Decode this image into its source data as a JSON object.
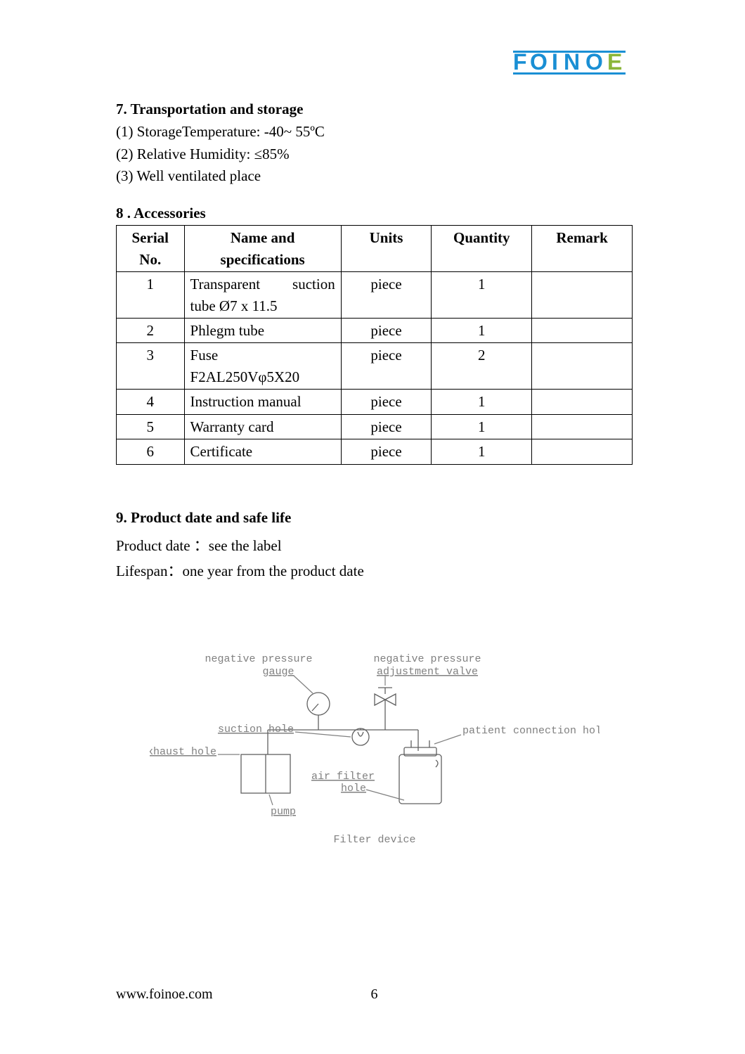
{
  "logo": {
    "text": "FOINOE",
    "color_primary": "#1a8fd4",
    "color_secondary": "#8bb63a"
  },
  "section7": {
    "title": "7. Transportation and storage",
    "items": [
      "(1) StorageTemperature: -40~ 55ºC",
      "(2) Relative Humidity: ≤85%",
      "(3) Well ventilated place"
    ]
  },
  "section8": {
    "title": "8 . Accessories",
    "columns": [
      "Serial No.",
      "Name and specifications",
      "Units",
      "Quantity",
      "Remark"
    ],
    "rows": [
      {
        "serial": "1",
        "name": "Transparent suction tube Ø7 x 11.5",
        "name_justify": true,
        "units": "piece",
        "qty": "1",
        "remark": ""
      },
      {
        "serial": "2",
        "name": "Phlegm tube",
        "units": "piece",
        "qty": "1",
        "remark": ""
      },
      {
        "serial": "3",
        "name": "Fuse F2AL250Vφ5X20",
        "units": "piece",
        "qty": "2",
        "remark": ""
      },
      {
        "serial": "4",
        "name": "Instruction manual",
        "units": "piece",
        "qty": "1",
        "remark": ""
      },
      {
        "serial": "5",
        "name": "Warranty card",
        "units": "piece",
        "qty": "1",
        "remark": ""
      },
      {
        "serial": "6",
        "name": "Certificate",
        "units": "piece",
        "qty": "1",
        "remark": ""
      }
    ]
  },
  "section9": {
    "title": "9. Product date and safe life",
    "line1": "Product date ：see the label",
    "line2": "Lifespan：one year from the product date"
  },
  "diagram": {
    "caption": "Filter device",
    "labels": {
      "neg_pressure_gauge_l1": "negative pressure",
      "neg_pressure_gauge_l2": "gauge",
      "neg_pressure_valve_l1": "negative pressure",
      "neg_pressure_valve_l2": "adjustment valve",
      "suction_hole": "suction hole",
      "patient_conn": "patient connection hole",
      "exhaust_hole": "exhaust hole",
      "air_filter_l1": "air filter",
      "air_filter_l2": "hole",
      "pump": "pump"
    }
  },
  "footer": {
    "url": "www.foinoe.com",
    "page": "6"
  }
}
